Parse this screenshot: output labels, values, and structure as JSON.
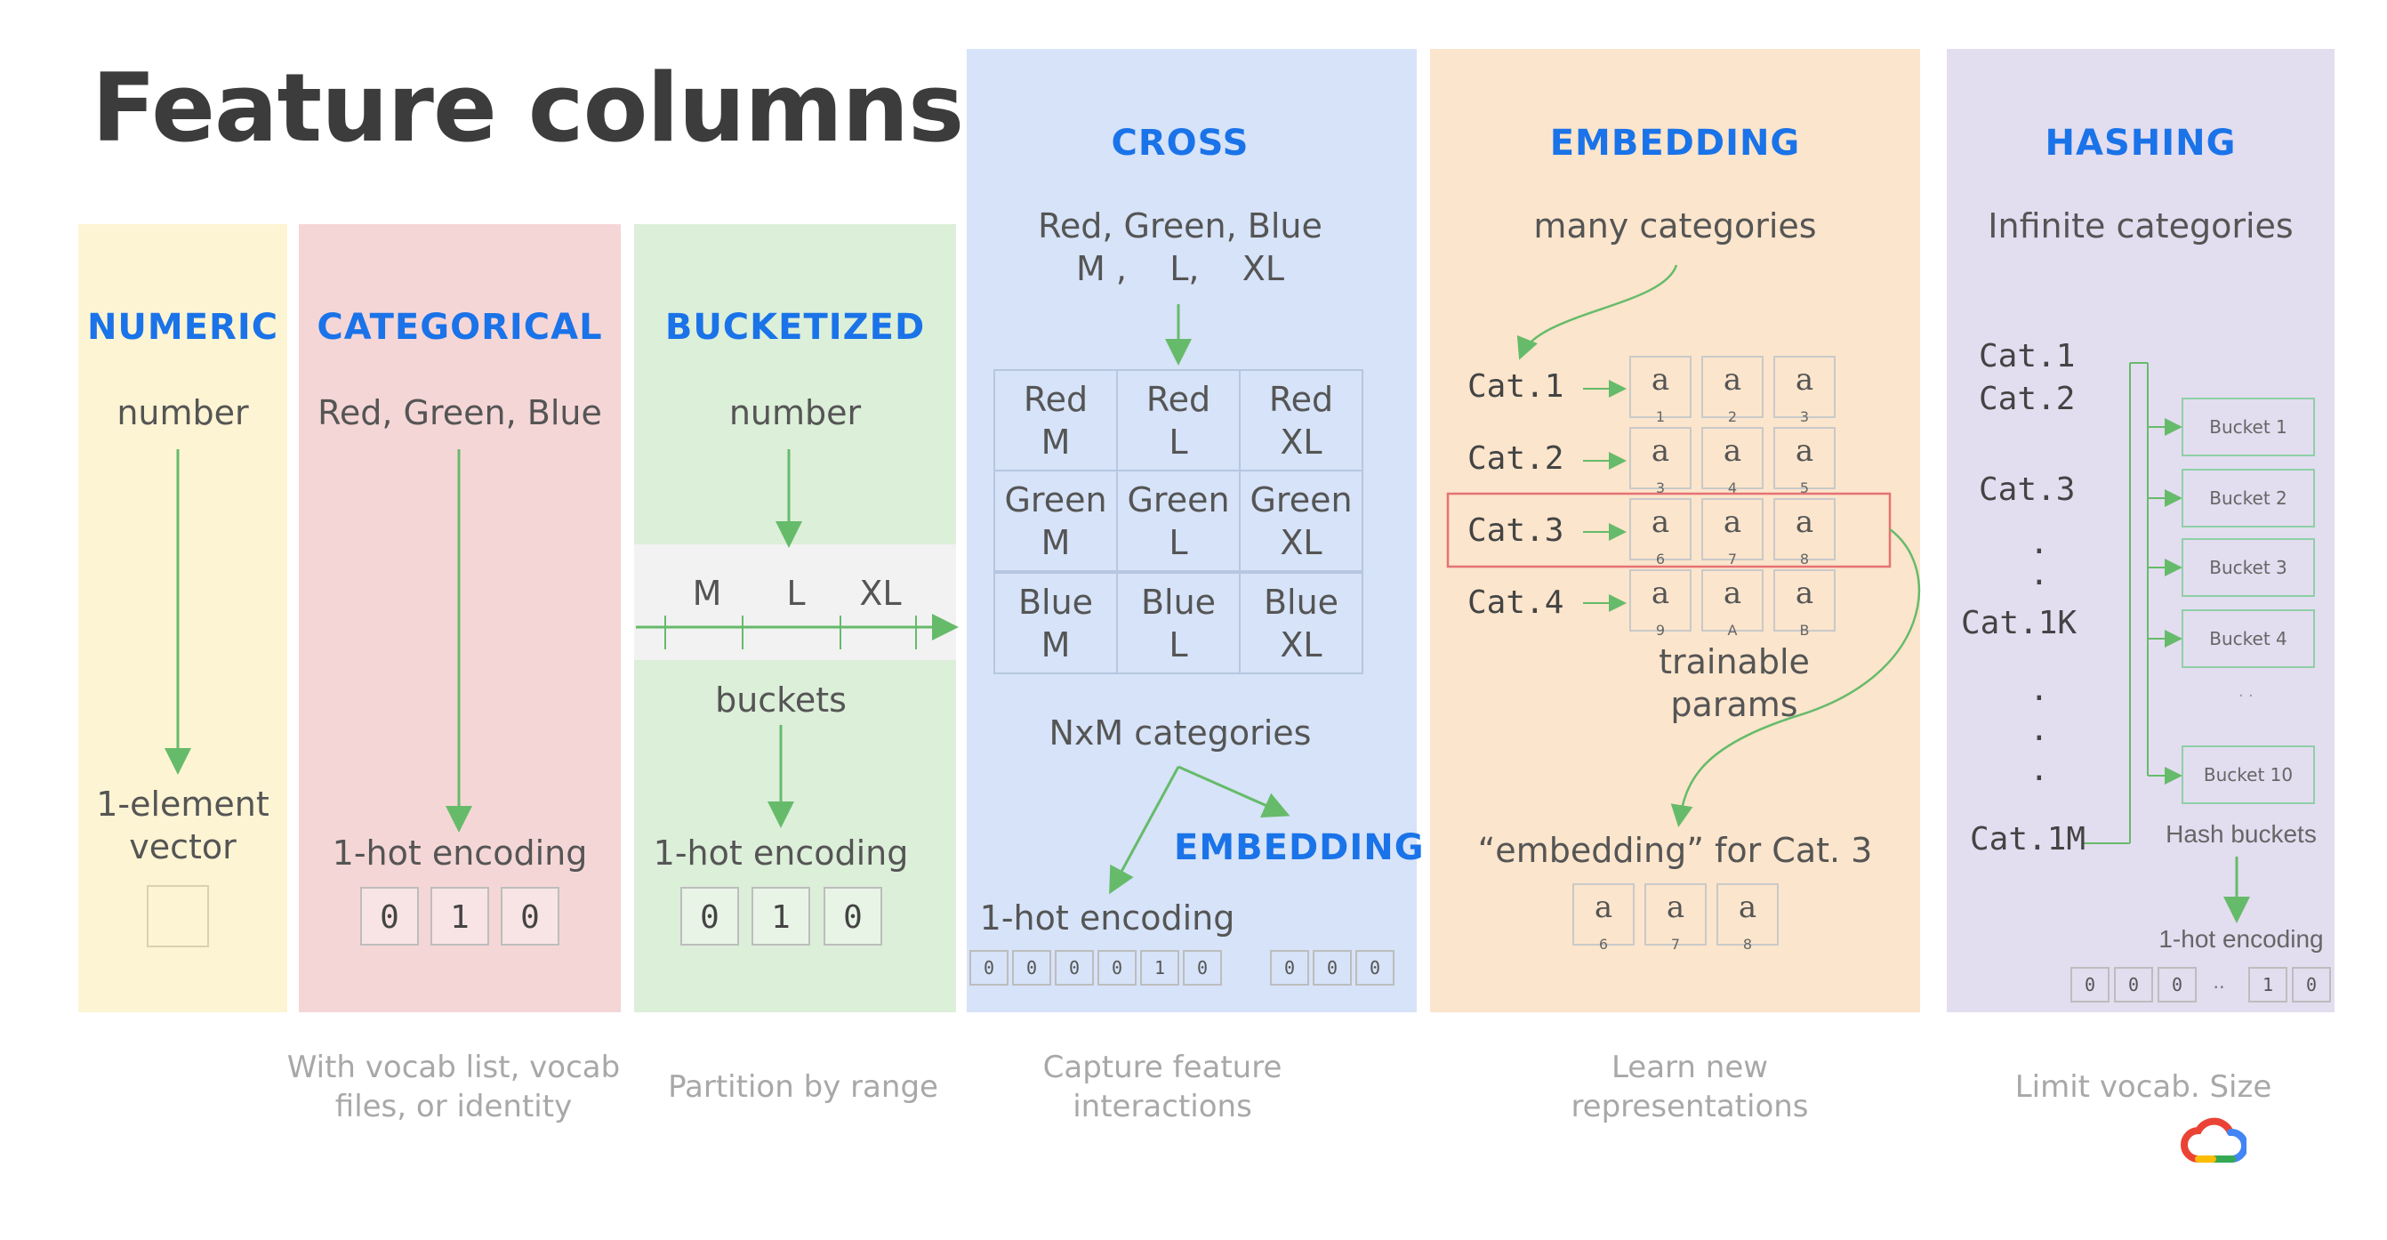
{
  "title": "Feature columns",
  "colors": {
    "numeric_bg": "#fdf4d3",
    "categorical_bg": "#f5d6d6",
    "bucketized_bg": "#dcefd9",
    "cross_bg": "#d6e3f8",
    "embedding_bg": "#fbe5cc",
    "hashing_bg": "#e3ddf0",
    "header_blue": "#1a73e8",
    "arrow_green": "#66bb6a",
    "highlight_red": "#e57373"
  },
  "numeric": {
    "header": "NUMERIC",
    "input": "number",
    "output": "1-element\nvector"
  },
  "categorical": {
    "header": "CATEGORICAL",
    "input": "Red, Green, Blue",
    "output": "1-hot encoding",
    "bits": [
      "0",
      "1",
      "0"
    ],
    "caption": "With vocab list, vocab\nfiles, or identity"
  },
  "bucketized": {
    "header": "BUCKETIZED",
    "input": "number",
    "scale_labels": [
      "M",
      "L",
      "XL"
    ],
    "middle": "buckets",
    "output": "1-hot encoding",
    "bits": [
      "0",
      "1",
      "0"
    ],
    "caption": "Partition by range"
  },
  "cross": {
    "header": "CROSS",
    "input_line1": "Red, Green, Blue",
    "input_line2": "M ,    L,    XL",
    "grid": [
      [
        "Red\nM",
        "Red\nL",
        "Red\nXL"
      ],
      [
        "Green\nM",
        "Green\nL",
        "Green\nXL"
      ],
      [
        "Blue\nM",
        "Blue\nL",
        "Blue\nXL"
      ]
    ],
    "categories_label": "NxM categories",
    "embedding_label": "EMBEDDING",
    "output": "1-hot encoding",
    "bits_left": [
      "0",
      "0",
      "0",
      "0",
      "1",
      "0"
    ],
    "bits_right": [
      "0",
      "0",
      "0"
    ],
    "caption": "Capture feature\ninteractions"
  },
  "embedding": {
    "header": "EMBEDDING",
    "input": "many categories",
    "cats": [
      "Cat.1",
      "Cat.2",
      "Cat.3",
      "Cat.4"
    ],
    "matrix_symbol": "a",
    "matrix_subscripts": [
      [
        "1",
        "2",
        "3"
      ],
      [
        "3",
        "4",
        "5"
      ],
      [
        "6",
        "7",
        "8"
      ],
      [
        "9",
        "A",
        "B"
      ]
    ],
    "params_label": "trainable\nparams",
    "output": "“embedding” for Cat. 3",
    "output_subscripts": [
      "6",
      "7",
      "8"
    ],
    "caption": "Learn new\nrepresentations"
  },
  "hashing": {
    "header": "HASHING",
    "input": "Infinite categories",
    "cats": [
      "Cat.1",
      "Cat.2",
      "Cat.3",
      ".",
      ".",
      "Cat.1K",
      ".",
      ".",
      ".",
      "Cat.1M"
    ],
    "buckets": [
      "Bucket 1",
      "Bucket 2",
      "Bucket 3",
      "Bucket 4",
      "Bucket 10"
    ],
    "bucket_dots": ". .",
    "buckets_label": "Hash buckets",
    "output": "1-hot encoding",
    "bits": [
      "0",
      "0",
      "0",
      "..",
      "1",
      "0"
    ],
    "caption": "Limit vocab. Size"
  }
}
